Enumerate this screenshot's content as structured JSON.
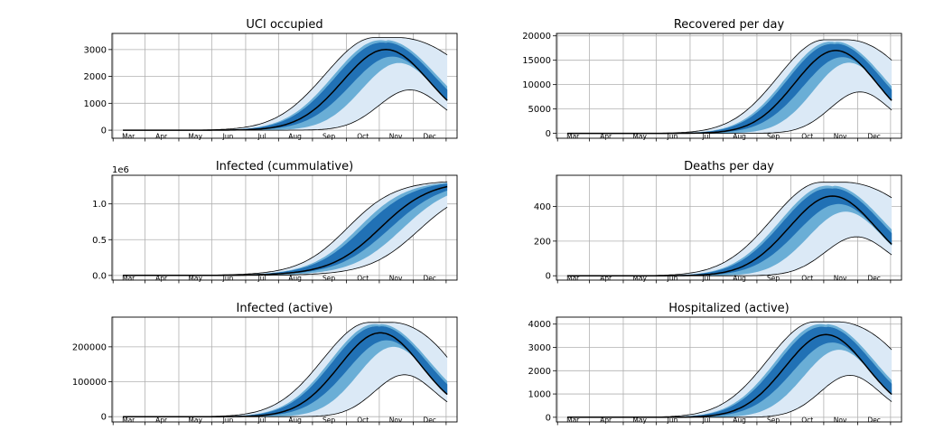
{
  "colors": {
    "band_outer": "#dbe9f6",
    "band_mid": "#6aaed6",
    "band_inner": "#2171b5",
    "line": "#000000"
  },
  "chart_data": [
    {
      "type": "area",
      "title": "UCI occupied",
      "x_ticks": [
        "Mar",
        "Apr",
        "May",
        "Jun",
        "Jul",
        "Aug",
        "Sep",
        "Oct",
        "Nov",
        "Dec"
      ],
      "yticks": [
        0,
        1000,
        2000,
        3000
      ],
      "ytick_labels": [
        "0",
        "1000",
        "2000",
        "3000"
      ],
      "offset_text": "",
      "ylim": [
        -300,
        3600
      ],
      "grid": true,
      "peak_day": 280,
      "width": 55,
      "s_median": 3000,
      "s_outer_low": 1500,
      "s_inner_low": 2500,
      "s_inner_high": 3350,
      "s_outer_high": 3450,
      "cap": 3450,
      "tail_hi": 2800
    },
    {
      "type": "area",
      "title": "Recovered per day",
      "x_ticks": [
        "Mar",
        "Apr",
        "May",
        "Jun",
        "Jul",
        "Aug",
        "Sep",
        "Oct",
        "Nov",
        "Dec"
      ],
      "yticks": [
        0,
        5000,
        10000,
        15000,
        20000
      ],
      "ytick_labels": [
        "0",
        "5000",
        "10000",
        "15000",
        "20000"
      ],
      "offset_text": "",
      "ylim": [
        -1000,
        20500
      ],
      "grid": true,
      "peak_day": 285,
      "width": 52,
      "s_median": 17000,
      "s_outer_low": 8500,
      "s_inner_low": 14500,
      "s_inner_high": 18800,
      "s_outer_high": 19200,
      "cap": 19200,
      "tail_hi": 15000
    },
    {
      "type": "area",
      "title": "Infected (cummulative)",
      "x_ticks": [
        "Mar",
        "Apr",
        "May",
        "Jun",
        "Jul",
        "Aug",
        "Sep",
        "Oct",
        "Nov",
        "Dec"
      ],
      "yticks": [
        0,
        0.5,
        1.0
      ],
      "ytick_labels": [
        "0.0",
        "0.5",
        "1.0"
      ],
      "offset_text": "1e6",
      "ylim": [
        -0.065,
        1.4
      ],
      "grid": true,
      "cumulative": true,
      "mid_median": 275,
      "mid_low": 295,
      "mid_high": 255,
      "total": 1.33
    },
    {
      "type": "area",
      "title": "Deaths per day",
      "x_ticks": [
        "Mar",
        "Apr",
        "May",
        "Jun",
        "Jul",
        "Aug",
        "Sep",
        "Oct",
        "Nov",
        "Dec"
      ],
      "yticks": [
        0,
        200,
        400
      ],
      "ytick_labels": [
        "0",
        "200",
        "400"
      ],
      "offset_text": "",
      "ylim": [
        -25,
        580
      ],
      "grid": true,
      "peak_day": 282,
      "width": 55,
      "s_median": 460,
      "s_outer_low": 225,
      "s_inner_low": 370,
      "s_inner_high": 520,
      "s_outer_high": 540,
      "cap": 540,
      "tail_hi": 450
    },
    {
      "type": "area",
      "title": "Infected (active)",
      "x_ticks": [
        "Mar",
        "Apr",
        "May",
        "Jun",
        "Jul",
        "Aug",
        "Sep",
        "Oct",
        "Nov",
        "Dec"
      ],
      "yticks": [
        0,
        100000,
        200000
      ],
      "ytick_labels": [
        "0",
        "100000",
        "200000"
      ],
      "offset_text": "",
      "ylim": [
        -15000,
        285000
      ],
      "grid": true,
      "peak_day": 275,
      "width": 52,
      "s_median": 240000,
      "s_outer_low": 120000,
      "s_inner_low": 200000,
      "s_inner_high": 265000,
      "s_outer_high": 270000,
      "cap": 270000,
      "tail_hi": 170000
    },
    {
      "type": "area",
      "title": "Hospitalized (active)",
      "x_ticks": [
        "Mar",
        "Apr",
        "May",
        "Jun",
        "Jul",
        "Aug",
        "Sep",
        "Oct",
        "Nov",
        "Dec"
      ],
      "yticks": [
        0,
        1000,
        2000,
        3000,
        4000
      ],
      "ytick_labels": [
        "0",
        "1000",
        "2000",
        "3000",
        "4000"
      ],
      "offset_text": "",
      "ylim": [
        -200,
        4300
      ],
      "grid": true,
      "peak_day": 276,
      "width": 52,
      "s_median": 3550,
      "s_outer_low": 1800,
      "s_inner_low": 2900,
      "s_inner_high": 4000,
      "s_outer_high": 4100,
      "cap": 4100,
      "tail_hi": 2900
    }
  ]
}
